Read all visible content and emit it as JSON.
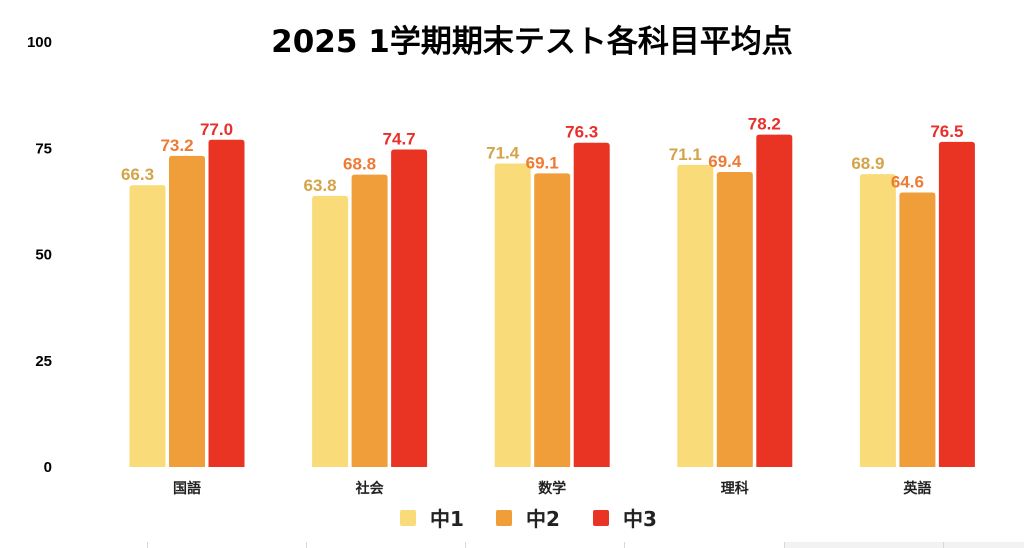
{
  "chart_data": {
    "type": "bar",
    "title": "2025 1学期期末テスト各科目平均点",
    "xlabel": "",
    "ylabel": "",
    "ylim": [
      0,
      100
    ],
    "yticks": [
      0,
      25,
      50,
      75,
      100
    ],
    "ytick_labels": [
      "0",
      "25",
      "50",
      "75",
      "100"
    ],
    "grid": false,
    "categories": [
      "国語",
      "社会",
      "数学",
      "理科",
      "英語"
    ],
    "series": [
      {
        "name": "中1",
        "color": "#F9DB79",
        "label_color": "#D4A44A",
        "values": [
          66.3,
          63.8,
          71.4,
          71.1,
          68.9
        ],
        "data_labels": [
          "66.3",
          "63.8",
          "71.4",
          "71.1",
          "68.9"
        ]
      },
      {
        "name": "中2",
        "color": "#F09E3A",
        "label_color": "#EE7A33",
        "values": [
          73.2,
          68.8,
          69.1,
          69.4,
          64.6
        ],
        "data_labels": [
          "73.2",
          "68.8",
          "69.1",
          "69.4",
          "64.6"
        ]
      },
      {
        "name": "中3",
        "color": "#E93424",
        "label_color": "#E8302A",
        "values": [
          77.0,
          74.7,
          76.3,
          78.2,
          76.5
        ],
        "data_labels": [
          "77.0",
          "74.7",
          "76.3",
          "78.2",
          "76.5"
        ]
      }
    ],
    "legend": {
      "position": "bottom",
      "entries": [
        "中1",
        "中2",
        "中3"
      ]
    }
  }
}
